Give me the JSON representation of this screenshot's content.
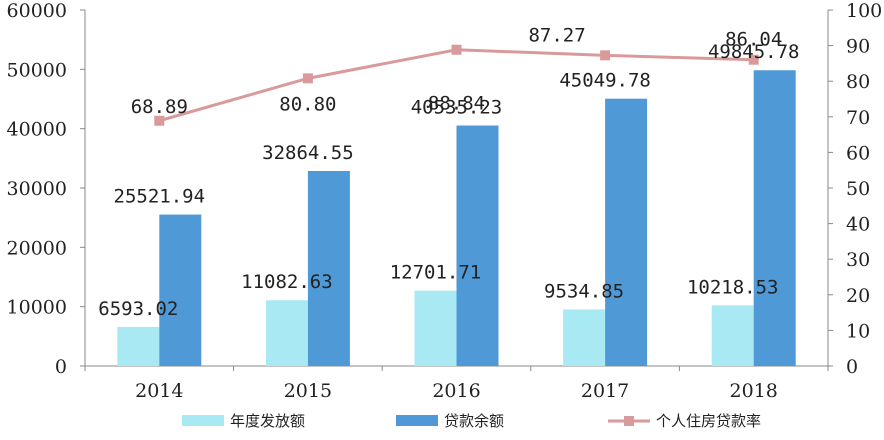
{
  "chart_data": {
    "type": "bar",
    "categories": [
      "2014",
      "2015",
      "2016",
      "2017",
      "2018"
    ],
    "series": [
      {
        "name": "年度发放额",
        "kind": "bar",
        "axis": "left",
        "color": "#a9e9f3",
        "values": [
          6593.02,
          11082.63,
          12701.71,
          9534.85,
          10218.53
        ],
        "labels": [
          "6593.02",
          "11082.63",
          "12701.71",
          "9534.85",
          "10218.53"
        ]
      },
      {
        "name": "贷款余额",
        "kind": "bar",
        "axis": "left",
        "color": "#4f9ad6",
        "values": [
          25521.94,
          32864.55,
          40535.23,
          45049.78,
          49845.78
        ],
        "labels": [
          "25521.94",
          "32864.55",
          "40535.23",
          "45049.78",
          "49845.78"
        ]
      },
      {
        "name": "个人住房贷款率",
        "kind": "line",
        "axis": "right",
        "color": "#d99a9b",
        "values": [
          68.89,
          80.8,
          88.84,
          87.27,
          86.04
        ],
        "labels": [
          "68.89",
          "80.80",
          "88.84",
          "87.27",
          "86.04"
        ]
      }
    ],
    "y_left": {
      "min": 0,
      "max": 60000,
      "ticks": [
        "0",
        "10000",
        "20000",
        "30000",
        "40000",
        "50000",
        "60000"
      ]
    },
    "y_right": {
      "min": 0,
      "max": 100,
      "ticks": [
        "0",
        "10",
        "20",
        "30",
        "40",
        "50",
        "60",
        "70",
        "80",
        "90",
        "100"
      ]
    },
    "grid": false,
    "legend_position": "bottom"
  }
}
